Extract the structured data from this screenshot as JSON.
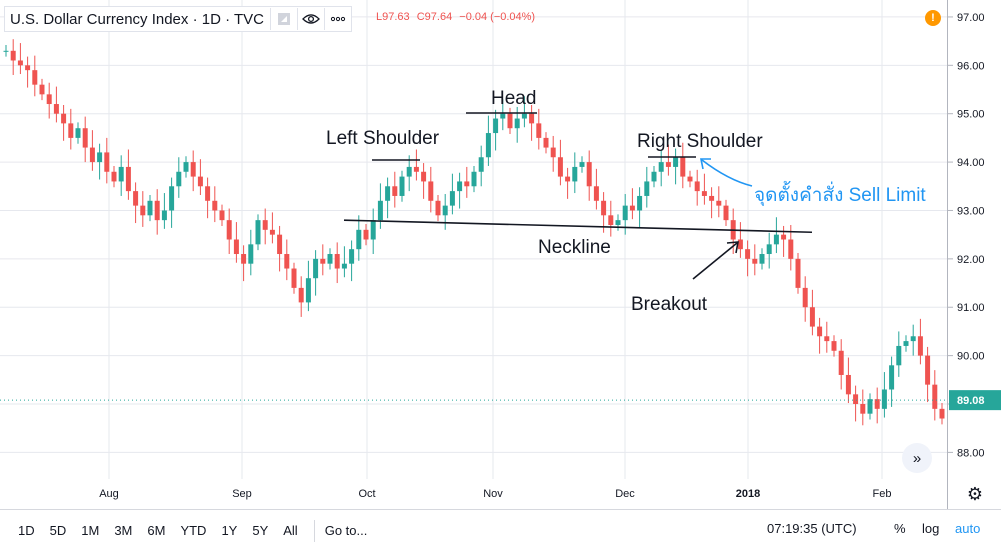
{
  "header": {
    "title": "U.S. Dollar Currency Index · 1D · TVC",
    "ohlc": {
      "low": "L97.63",
      "close": "C97.64",
      "change": "−0.04 (−0.04%)"
    }
  },
  "annotations": {
    "left_shoulder": "Left Shoulder",
    "head": "Head",
    "right_shoulder": "Right Shoulder",
    "neckline": "Neckline",
    "breakout": "Breakout",
    "sell_limit": "จุดตั้งคำสั่ง Sell Limit"
  },
  "colors": {
    "up": "#26a69a",
    "down": "#ef5350",
    "grid": "#e6e8ee",
    "accent": "#2196f3",
    "line": "#131722"
  },
  "icons": {
    "eye": "eye-icon",
    "more": "more-icon",
    "flag": "flag-icon",
    "alert": "alert-icon",
    "settings": "gear-icon",
    "scroll": "double-chevron-right-icon"
  },
  "chart_data": {
    "type": "candlestick",
    "title": "U.S. Dollar Currency Index",
    "interval": "1D",
    "y_ticks": [
      97.0,
      96.0,
      95.0,
      94.0,
      93.0,
      92.0,
      91.0,
      90.0,
      89.0,
      88.0
    ],
    "ylim": [
      87.45,
      97.35
    ],
    "current_price": "89.08",
    "x_ticks": [
      "Aug",
      "Sep",
      "Oct",
      "Nov",
      "Dec",
      "2018",
      "Feb"
    ],
    "neckline": {
      "from": 92.8,
      "to": 92.55
    },
    "closes": [
      96.3,
      96.1,
      96.0,
      95.9,
      95.6,
      95.4,
      95.2,
      95.0,
      94.8,
      94.5,
      94.7,
      94.3,
      94.0,
      94.2,
      93.8,
      93.6,
      93.9,
      93.4,
      93.1,
      92.9,
      93.2,
      92.8,
      93.0,
      93.5,
      93.8,
      94.0,
      93.7,
      93.5,
      93.2,
      93.0,
      92.8,
      92.4,
      92.1,
      91.9,
      92.3,
      92.8,
      92.6,
      92.5,
      92.1,
      91.8,
      91.4,
      91.1,
      91.6,
      92.0,
      91.9,
      92.1,
      91.8,
      91.9,
      92.2,
      92.6,
      92.4,
      92.8,
      93.2,
      93.5,
      93.3,
      93.7,
      93.9,
      93.8,
      93.6,
      93.2,
      92.9,
      93.1,
      93.4,
      93.6,
      93.5,
      93.8,
      94.1,
      94.6,
      94.9,
      95.0,
      94.7,
      94.9,
      95.0,
      94.8,
      94.5,
      94.3,
      94.1,
      93.7,
      93.6,
      93.9,
      94.0,
      93.5,
      93.2,
      92.9,
      92.7,
      92.8,
      93.1,
      93.0,
      93.3,
      93.6,
      93.8,
      94.0,
      93.9,
      94.1,
      93.7,
      93.6,
      93.4,
      93.3,
      93.2,
      93.1,
      92.8,
      92.4,
      92.2,
      92.0,
      91.9,
      92.1,
      92.3,
      92.5,
      92.4,
      92.0,
      91.4,
      91.0,
      90.6,
      90.4,
      90.3,
      90.1,
      89.6,
      89.2,
      89.0,
      88.8,
      89.1,
      88.9,
      89.3,
      89.8,
      90.2,
      90.3,
      90.4,
      90.0,
      89.4,
      88.9,
      88.7
    ]
  },
  "xaxis": {
    "labels": [
      "Aug",
      "Sep",
      "Oct",
      "Nov",
      "Dec",
      "2018",
      "Feb"
    ]
  },
  "bottombar": {
    "timeframes": [
      "1D",
      "5D",
      "1M",
      "3M",
      "6M",
      "YTD",
      "1Y",
      "5Y",
      "All"
    ],
    "goto": "Go to...",
    "clock": "07:19:35 (UTC)",
    "percent": "%",
    "log": "log",
    "auto": "auto"
  }
}
